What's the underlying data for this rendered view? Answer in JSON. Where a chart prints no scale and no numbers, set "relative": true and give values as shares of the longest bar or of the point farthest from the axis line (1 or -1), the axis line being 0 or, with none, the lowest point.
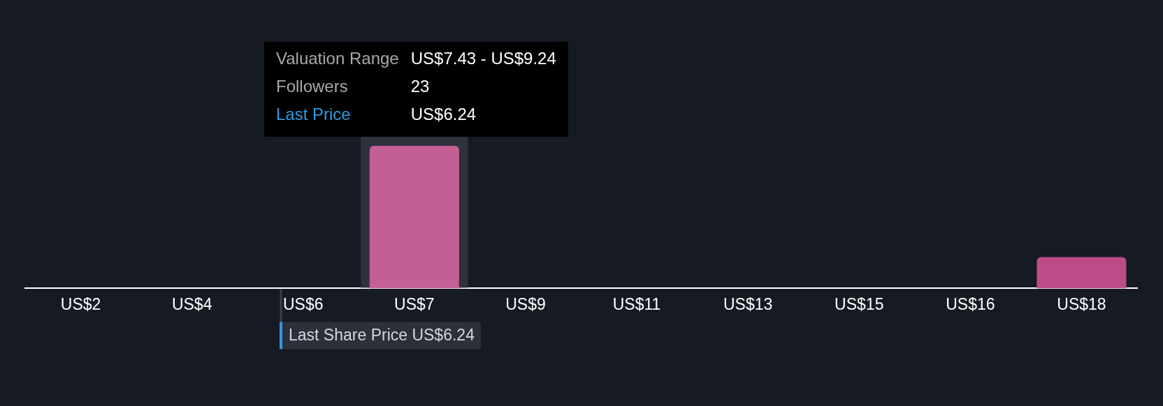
{
  "chart_data": {
    "type": "bar",
    "relative": true,
    "categories": [
      "US$2",
      "US$4",
      "US$6",
      "US$7",
      "US$9",
      "US$11",
      "US$13",
      "US$15",
      "US$16",
      "US$18"
    ],
    "values": [
      0,
      0,
      0,
      1,
      0,
      0,
      0,
      0,
      0,
      0.22
    ],
    "colors": [
      "#c45f96",
      "#c45f96",
      "#c45f96",
      "#c45f96",
      "#bc4c87",
      "#bc4c87",
      "#bc4c87",
      "#bc4c87",
      "#bc4c87",
      "#bc4c87"
    ],
    "bands": [
      {
        "axis": "x",
        "from": "US$7",
        "to": "US$7",
        "color": "#2d323c"
      }
    ],
    "annotations": [
      "Valuation Range",
      "US$7.43 - US$9.24",
      "Followers",
      "23",
      "Last Price",
      "US$6.24",
      "Last Share Price US$6.24"
    ],
    "grid": false
  }
}
